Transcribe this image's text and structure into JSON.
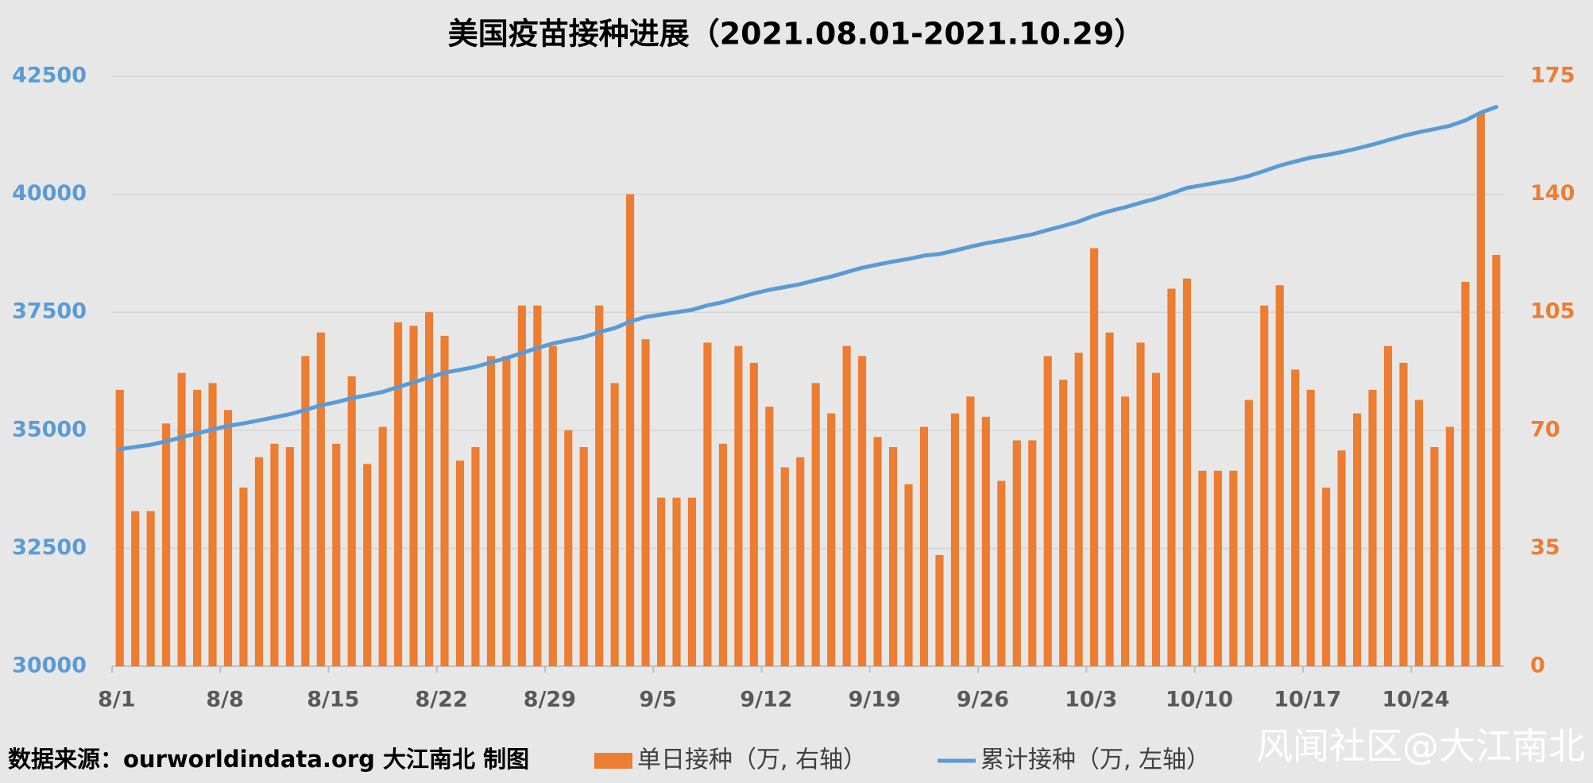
{
  "chart_data": {
    "type": "bar",
    "title": "美国疫苗接种进展（2021.08.01-2021.10.29）",
    "categories": [
      "8/1",
      null,
      null,
      null,
      null,
      null,
      null,
      "8/8",
      null,
      null,
      null,
      null,
      null,
      null,
      "8/15",
      null,
      null,
      null,
      null,
      null,
      null,
      "8/22",
      null,
      null,
      null,
      null,
      null,
      null,
      "8/29",
      null,
      null,
      null,
      null,
      null,
      null,
      "9/5",
      null,
      null,
      null,
      null,
      null,
      null,
      "9/12",
      null,
      null,
      null,
      null,
      null,
      null,
      "9/19",
      null,
      null,
      null,
      null,
      null,
      null,
      "9/26",
      null,
      null,
      null,
      null,
      null,
      null,
      "10/3",
      null,
      null,
      null,
      null,
      null,
      null,
      "10/10",
      null,
      null,
      null,
      null,
      null,
      null,
      "10/17",
      null,
      null,
      null,
      null,
      null,
      null,
      "10/24",
      null,
      null,
      null,
      null,
      null
    ],
    "series": [
      {
        "name": "单日接种（万, 右轴）",
        "type": "bar",
        "axis": "y2",
        "color": "#ed7d31",
        "values": [
          82,
          46,
          46,
          72,
          87,
          82,
          84,
          76,
          53,
          62,
          66,
          65,
          92,
          99,
          66,
          86,
          60,
          71,
          102,
          101,
          105,
          98,
          61,
          65,
          92,
          92,
          107,
          107,
          95,
          70,
          65,
          107,
          84,
          140,
          97,
          50,
          50,
          50,
          96,
          66,
          95,
          90,
          77,
          59,
          62,
          84,
          75,
          95,
          92,
          68,
          65,
          54,
          71,
          33,
          75,
          80,
          74,
          55,
          67,
          67,
          92,
          85,
          93,
          124,
          99,
          80,
          96,
          87,
          112,
          115,
          58,
          58,
          58,
          79,
          107,
          113,
          88,
          82,
          53,
          64,
          75,
          82,
          95,
          90,
          79,
          65,
          71,
          114,
          164,
          122
        ]
      },
      {
        "name": "累计接种（万, 左轴）",
        "type": "line",
        "color": "#5b9bd5",
        "values": [
          34600,
          34646,
          34692,
          34764,
          34851,
          34933,
          35017,
          35093,
          35146,
          35208,
          35274,
          35339,
          35431,
          35530,
          35596,
          35682,
          35742,
          35813,
          35915,
          36016,
          36121,
          36219,
          36280,
          36345,
          36437,
          36529,
          36636,
          36743,
          36838,
          36908,
          36973,
          37080,
          37164,
          37304,
          37401,
          37451,
          37501,
          37551,
          37647,
          37713,
          37808,
          37898,
          37975,
          38034,
          38096,
          38180,
          38255,
          38350,
          38442,
          38510,
          38575,
          38629,
          38700,
          38733,
          38808,
          38888,
          38962,
          39017,
          39084,
          39151,
          39243,
          39328,
          39421,
          39545,
          39644,
          39724,
          39820,
          39907,
          40019,
          40134,
          40192,
          40250,
          40308,
          40387,
          40494,
          40607,
          40695,
          40777,
          40830,
          40894,
          40969,
          41051,
          41146,
          41236,
          41315,
          41380,
          41451,
          41565,
          41729,
          41851
        ]
      }
    ],
    "ylim": [
      30000,
      42500
    ],
    "yticks": [
      30000,
      32500,
      35000,
      37500,
      40000,
      42500
    ],
    "y2lim": [
      0,
      175
    ],
    "y2ticks": [
      0,
      35,
      70,
      105,
      140,
      175
    ],
    "grid": true,
    "source": "数据来源：ourworldindata.org 大江南北 制图",
    "watermark": "风闻社区@大江南北"
  }
}
